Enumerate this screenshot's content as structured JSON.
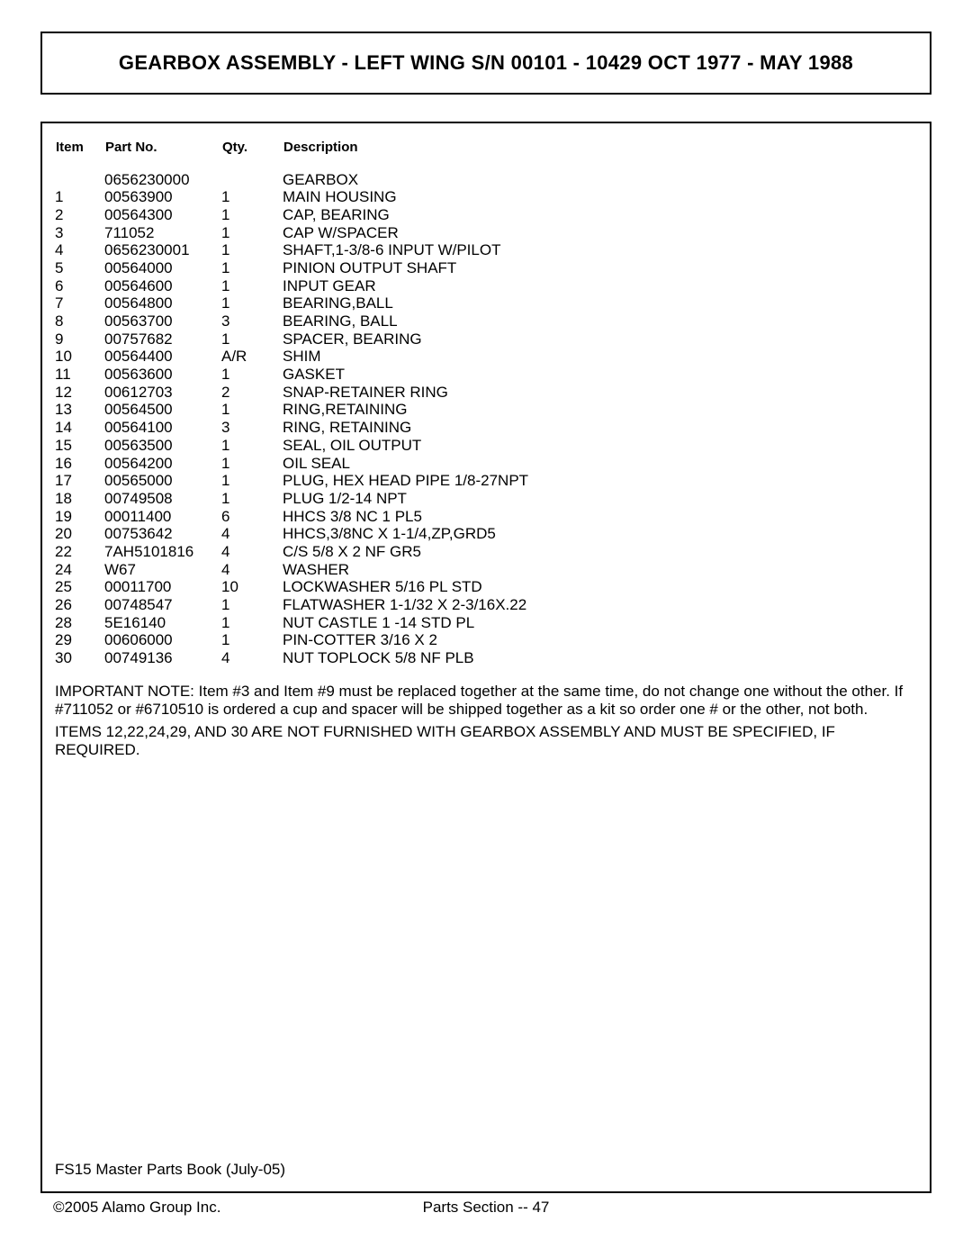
{
  "title": "GEARBOX ASSEMBLY - LEFT WING S/N 00101 - 10429 OCT 1977 - MAY 1988",
  "headers": {
    "item": "Item",
    "part": "Part No.",
    "qty": "Qty.",
    "desc": "Description"
  },
  "rows": [
    {
      "item": "",
      "part": "0656230000",
      "qty": "",
      "desc": "GEARBOX"
    },
    {
      "item": "1",
      "part": "00563900",
      "qty": "1",
      "desc": "MAIN HOUSING"
    },
    {
      "item": "2",
      "part": "00564300",
      "qty": "1",
      "desc": "CAP, BEARING"
    },
    {
      "item": "3",
      "part": "711052",
      "qty": "1",
      "desc": "CAP W/SPACER"
    },
    {
      "item": "4",
      "part": "0656230001",
      "qty": "1",
      "desc": "SHAFT,1-3/8-6 INPUT W/PILOT"
    },
    {
      "item": "5",
      "part": "00564000",
      "qty": "1",
      "desc": "PINION OUTPUT SHAFT"
    },
    {
      "item": "6",
      "part": "00564600",
      "qty": "1",
      "desc": "INPUT GEAR"
    },
    {
      "item": "7",
      "part": "00564800",
      "qty": "1",
      "desc": "BEARING,BALL"
    },
    {
      "item": "8",
      "part": "00563700",
      "qty": "3",
      "desc": "BEARING, BALL"
    },
    {
      "item": "9",
      "part": "00757682",
      "qty": "1",
      "desc": "SPACER, BEARING"
    },
    {
      "item": "10",
      "part": "00564400",
      "qty": "A/R",
      "desc": "SHIM"
    },
    {
      "item": "11",
      "part": "00563600",
      "qty": "1",
      "desc": "GASKET"
    },
    {
      "item": "12",
      "part": "00612703",
      "qty": "2",
      "desc": "SNAP-RETAINER RING"
    },
    {
      "item": "13",
      "part": "00564500",
      "qty": "1",
      "desc": "RING,RETAINING"
    },
    {
      "item": "14",
      "part": "00564100",
      "qty": "3",
      "desc": "RING, RETAINING"
    },
    {
      "item": "15",
      "part": "00563500",
      "qty": "1",
      "desc": "SEAL, OIL OUTPUT"
    },
    {
      "item": "16",
      "part": "00564200",
      "qty": "1",
      "desc": "OIL SEAL"
    },
    {
      "item": "17",
      "part": "00565000",
      "qty": "1",
      "desc": "PLUG, HEX HEAD PIPE 1/8-27NPT"
    },
    {
      "item": "18",
      "part": "00749508",
      "qty": "1",
      "desc": "PLUG 1/2-14 NPT"
    },
    {
      "item": "19",
      "part": "00011400",
      "qty": "6",
      "desc": "HHCS 3/8 NC 1 PL5"
    },
    {
      "item": "20",
      "part": "00753642",
      "qty": "4",
      "desc": "HHCS,3/8NC X 1-1/4,ZP,GRD5"
    },
    {
      "item": "22",
      "part": "7AH5101816",
      "qty": "4",
      "desc": "C/S 5/8 X 2 NF GR5"
    },
    {
      "item": "24",
      "part": "W67",
      "qty": "4",
      "desc": "WASHER"
    },
    {
      "item": "25",
      "part": "00011700",
      "qty": "10",
      "desc": "LOCKWASHER 5/16 PL STD"
    },
    {
      "item": "26",
      "part": "00748547",
      "qty": "1",
      "desc": "FLATWASHER 1-1/32 X 2-3/16X.22"
    },
    {
      "item": "28",
      "part": "5E16140",
      "qty": "1",
      "desc": "NUT CASTLE 1 -14 STD PL"
    },
    {
      "item": "29",
      "part": "00606000",
      "qty": "1",
      "desc": "PIN-COTTER 3/16 X 2"
    },
    {
      "item": "30",
      "part": "00749136",
      "qty": "4",
      "desc": "NUT TOPLOCK 5/8 NF PLB"
    }
  ],
  "notes": {
    "n1": "IMPORTANT NOTE: Item #3 and Item #9 must be replaced together at the same time, do not change one without the other. If #711052 or #6710510 is ordered a cup and spacer will be shipped together as a kit so order one # or the other, not both.",
    "n2": "ITEMS 12,22,24,29, AND 30 ARE NOT FURNISHED WITH GEARBOX ASSEMBLY AND MUST BE SPECIFIED, IF REQUIRED."
  },
  "footer": {
    "book": "FS15 Master Parts Book (July-05)",
    "copyright": "©2005 Alamo Group Inc.",
    "section": "Parts Section -- 47"
  }
}
